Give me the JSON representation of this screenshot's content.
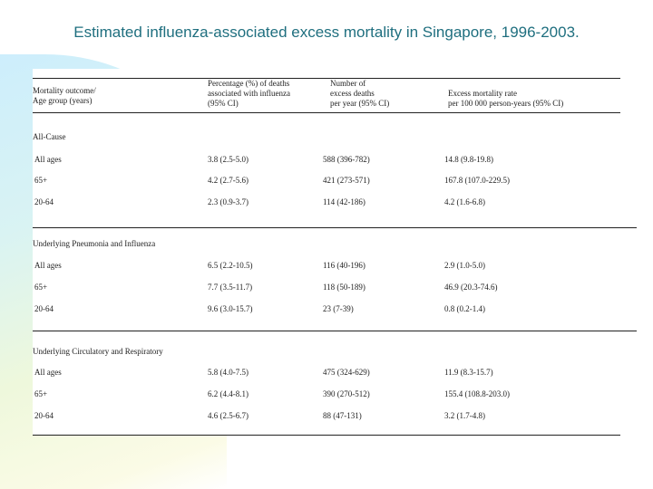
{
  "title": "Estimated influenza-associated excess mortality in Singapore, 1996-2003.",
  "headers": {
    "col1": [
      "Mortality outcome/",
      "Age group (years)"
    ],
    "col2": [
      "Percentage (%) of deaths",
      "associated with influenza",
      "(95% CI)"
    ],
    "col3": [
      "Number of",
      "excess deaths",
      "per year (95% CI)"
    ],
    "col4": [
      "Excess mortality rate",
      "per 100 000 person-years (95% CI)"
    ]
  },
  "sections": [
    {
      "label": "All-Cause",
      "rows": [
        {
          "group": "All ages",
          "pct": "3.8 (2.5-5.0)",
          "deaths": "588 (396-782)",
          "rate": "14.8 (9.8-19.8)"
        },
        {
          "group": "65+",
          "pct": "4.2 (2.7-5.6)",
          "deaths": "421 (273-571)",
          "rate": "167.8 (107.0-229.5)"
        },
        {
          "group": "20-64",
          "pct": "2.3 (0.9-3.7)",
          "deaths": "114 (42-186)",
          "rate": "4.2 (1.6-6.8)"
        }
      ]
    },
    {
      "label": "Underlying Pneumonia and Influenza",
      "rows": [
        {
          "group": "All ages",
          "pct": "6.5 (2.2-10.5)",
          "deaths": "116 (40-196)",
          "rate": "2.9 (1.0-5.0)"
        },
        {
          "group": "65+",
          "pct": "7.7 (3.5-11.7)",
          "deaths": "118 (50-189)",
          "rate": "46.9 (20.3-74.6)"
        },
        {
          "group": "20-64",
          "pct": "9.6 (3.0-15.7)",
          "deaths": "23 (7-39)",
          "rate": "0.8 (0.2-1.4)"
        }
      ]
    },
    {
      "label": "Underlying Circulatory and Respiratory",
      "rows": [
        {
          "group": "All ages",
          "pct": "5.8 (4.0-7.5)",
          "deaths": "475 (324-629)",
          "rate": "11.9 (8.3-15.7)"
        },
        {
          "group": "65+",
          "pct": "6.2 (4.4-8.1)",
          "deaths": "390 (270-512)",
          "rate": "155.4 (108.8-203.0)"
        },
        {
          "group": "20-64",
          "pct": "4.6 (2.5-6.7)",
          "deaths": "88 (47-131)",
          "rate": "3.2 (1.7-4.8)"
        }
      ]
    }
  ]
}
